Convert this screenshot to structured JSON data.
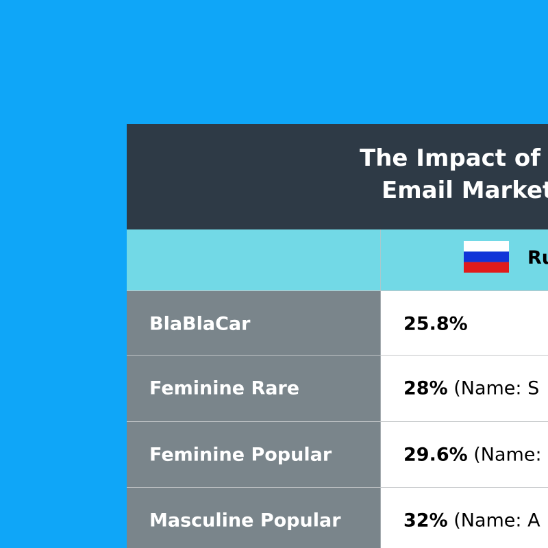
{
  "header": {
    "title_lines": [
      "The Impact of",
      "Email Market"
    ]
  },
  "columns": [
    "Ru"
  ],
  "table": {
    "rows": [
      {
        "label": "BlaBlaCar",
        "value": "25.8%"
      },
      {
        "label": "Feminine Rare",
        "value": "28%",
        "note": "(Name: S"
      },
      {
        "label": "Feminine Popular",
        "value": "29.6%",
        "note": "(Name:"
      },
      {
        "label": "Masculine Popular",
        "value": "32%",
        "note": "(Name: A"
      }
    ]
  }
}
